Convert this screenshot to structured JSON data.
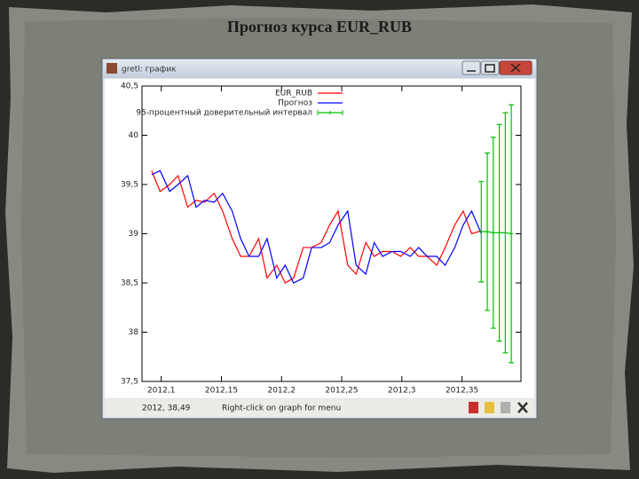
{
  "slide": {
    "title": "Прогноз курса EUR_RUB"
  },
  "window": {
    "title": "gretl: график",
    "status_coords": "2012, 38,49",
    "status_hint": "Right-click on graph for menu"
  },
  "chart_data": {
    "type": "line",
    "x": [
      2012.092,
      2012.099,
      2012.107,
      2012.114,
      2012.122,
      2012.129,
      2012.136,
      2012.144,
      2012.151,
      2012.159,
      2012.166,
      2012.173,
      2012.181,
      2012.188,
      2012.196,
      2012.203,
      2012.21,
      2012.218,
      2012.225,
      2012.233,
      2012.24,
      2012.247,
      2012.255,
      2012.262,
      2012.27,
      2012.277,
      2012.284,
      2012.292,
      2012.299,
      2012.307,
      2012.314,
      2012.321,
      2012.329,
      2012.336,
      2012.344,
      2012.351,
      2012.358,
      2012.366
    ],
    "series": [
      {
        "name": "EUR_RUB",
        "color": "#ff0000",
        "values": [
          39.64,
          39.43,
          39.5,
          39.59,
          39.27,
          39.34,
          39.32,
          39.41,
          39.23,
          38.95,
          38.77,
          38.77,
          38.95,
          38.55,
          38.68,
          38.5,
          38.55,
          38.86,
          38.86,
          38.91,
          39.09,
          39.23,
          38.68,
          38.59,
          38.91,
          38.77,
          38.82,
          38.82,
          38.77,
          38.86,
          38.77,
          38.77,
          38.68,
          38.86,
          39.09,
          39.23,
          39.0,
          39.03
        ]
      },
      {
        "name": "Прогноз",
        "color": "#0000ff",
        "values": [
          39.6,
          39.64,
          39.43,
          39.5,
          39.59,
          39.27,
          39.34,
          39.32,
          39.41,
          39.23,
          38.95,
          38.77,
          38.77,
          38.95,
          38.55,
          38.68,
          38.5,
          38.55,
          38.86,
          38.86,
          38.91,
          39.09,
          39.23,
          38.68,
          38.59,
          38.91,
          38.77,
          38.82,
          38.82,
          38.77,
          38.86,
          38.77,
          38.77,
          38.68,
          38.86,
          39.09,
          39.23,
          39.0
        ]
      },
      {
        "name": "95-процентный доверительный интервал",
        "color": "#00c000",
        "x": [
          2012.366,
          2012.371,
          2012.376,
          2012.381,
          2012.386,
          2012.391
        ],
        "values": [
          39.02,
          39.02,
          39.01,
          39.01,
          39.01,
          39.0
        ],
        "errors": [
          0.51,
          0.8,
          0.97,
          1.1,
          1.22,
          1.31
        ]
      }
    ],
    "xlim": [
      2012.084,
      2012.399
    ],
    "xticks": [
      {
        "value": 2012.1,
        "label": "2012,1"
      },
      {
        "value": 2012.15,
        "label": "2012,15"
      },
      {
        "value": 2012.2,
        "label": "2012,2"
      },
      {
        "value": 2012.25,
        "label": "2012,25"
      },
      {
        "value": 2012.3,
        "label": "2012,3"
      },
      {
        "value": 2012.35,
        "label": "2012,35"
      }
    ],
    "ylim": [
      37.5,
      40.5
    ],
    "yticks": [
      {
        "value": 37.5,
        "label": "37,5"
      },
      38,
      {
        "value": 38.5,
        "label": "38,5"
      },
      39,
      {
        "value": 39.5,
        "label": "39,5"
      },
      40,
      {
        "value": 40.5,
        "label": "40,5"
      }
    ]
  }
}
